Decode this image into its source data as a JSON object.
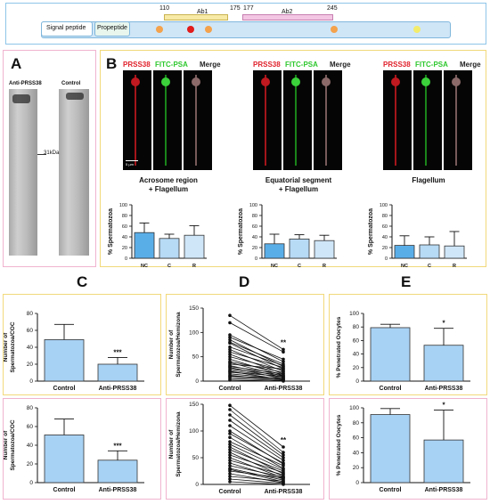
{
  "schematic": {
    "segments": [
      {
        "label": "Signal peptide"
      },
      {
        "label": "Propeptide"
      }
    ],
    "positions": {
      "p110": "110",
      "p175": "175",
      "p177": "177",
      "p245": "245"
    },
    "antibodies": {
      "ab1": "Ab1",
      "ab2": "Ab2"
    },
    "colors": {
      "track": "#cfe6f7",
      "ab1": "#f7e9a6",
      "ab2": "#f3c6e3",
      "orange": "#f4a24c",
      "red": "#e21b1b",
      "yellow": "#f2ec6b"
    }
  },
  "panel_letters": {
    "a": "A",
    "b": "B",
    "c": "C",
    "d": "D",
    "e": "E"
  },
  "western": {
    "lane1": "Anti-PRSS38",
    "lane2": "Control",
    "marker": "31kDa"
  },
  "micro_headers": {
    "red": "PRSS38",
    "green": "FITC-PSA",
    "merge": "Merge"
  },
  "scale_bar": "5 µm",
  "micro_groups": [
    {
      "caption_line1": "Acrosome region",
      "caption_line2": "+ Flagellum"
    },
    {
      "caption_line1": "Equatorial segment",
      "caption_line2": "+ Flagellum"
    },
    {
      "caption_line1": "Flagellum",
      "caption_line2": ""
    }
  ],
  "chart_data": [
    {
      "id": "b1",
      "type": "bar",
      "categories": [
        "NC",
        "C",
        "R"
      ],
      "values": [
        48,
        37,
        43
      ],
      "errors": [
        18,
        8,
        18
      ],
      "ylabel": "% Spermatozoa",
      "ylim": [
        0,
        100
      ],
      "yticks": [
        0,
        20,
        40,
        60,
        80,
        100
      ],
      "colors": [
        "#5aaee8",
        "#b7daf5",
        "#cfe6f8"
      ]
    },
    {
      "id": "b2",
      "type": "bar",
      "categories": [
        "NC",
        "C",
        "R"
      ],
      "values": [
        27,
        36,
        33
      ],
      "errors": [
        18,
        8,
        10
      ],
      "ylabel": "% Spermatozoa",
      "ylim": [
        0,
        100
      ],
      "yticks": [
        0,
        20,
        40,
        60,
        80,
        100
      ],
      "colors": [
        "#5aaee8",
        "#b7daf5",
        "#cfe6f8"
      ]
    },
    {
      "id": "b3",
      "type": "bar",
      "categories": [
        "NC",
        "C",
        "R"
      ],
      "values": [
        24,
        25,
        23
      ],
      "errors": [
        18,
        15,
        27
      ],
      "ylabel": "% Spermatozoa",
      "ylim": [
        0,
        100
      ],
      "yticks": [
        0,
        20,
        40,
        60,
        80,
        100
      ],
      "colors": [
        "#5aaee8",
        "#b7daf5",
        "#cfe6f8"
      ]
    },
    {
      "id": "c1",
      "type": "bar",
      "categories": [
        "Control",
        "Anti-PRSS38"
      ],
      "values": [
        49,
        20
      ],
      "errors": [
        18,
        8
      ],
      "ylabel": "Number of Spermatozoa/COC",
      "ylim": [
        0,
        80
      ],
      "yticks": [
        0,
        20,
        40,
        60,
        80
      ],
      "sig": "***",
      "colors": [
        "#a8d2f4",
        "#a8d2f4"
      ]
    },
    {
      "id": "c2",
      "type": "bar",
      "categories": [
        "Control",
        "Anti-PRSS38"
      ],
      "values": [
        51,
        24
      ],
      "errors": [
        17,
        10
      ],
      "ylabel": "Number of Spermatozoa/COC",
      "ylim": [
        0,
        80
      ],
      "yticks": [
        0,
        20,
        40,
        60,
        80
      ],
      "sig": "***",
      "colors": [
        "#a8d2f4",
        "#a8d2f4"
      ]
    },
    {
      "id": "d1",
      "type": "line",
      "categories": [
        "Control",
        "Anti-PRSS38"
      ],
      "ylabel": "Number of Spermatozoa/Hemizona",
      "ylim": [
        0,
        150
      ],
      "yticks": [
        0,
        50,
        100,
        150
      ],
      "sig": "**",
      "pairs": [
        [
          135,
          65
        ],
        [
          120,
          60
        ],
        [
          95,
          40
        ],
        [
          90,
          45
        ],
        [
          85,
          30
        ],
        [
          80,
          35
        ],
        [
          78,
          25
        ],
        [
          70,
          32
        ],
        [
          65,
          20
        ],
        [
          60,
          28
        ],
        [
          55,
          15
        ],
        [
          50,
          22
        ],
        [
          45,
          12
        ],
        [
          40,
          18
        ],
        [
          38,
          10
        ],
        [
          35,
          25
        ],
        [
          32,
          8
        ],
        [
          30,
          15
        ],
        [
          28,
          5
        ],
        [
          25,
          12
        ],
        [
          22,
          8
        ],
        [
          20,
          3
        ],
        [
          18,
          10
        ],
        [
          15,
          5
        ],
        [
          12,
          2
        ],
        [
          10,
          6
        ],
        [
          8,
          3
        ],
        [
          5,
          1
        ],
        [
          2,
          0
        ]
      ]
    },
    {
      "id": "d2",
      "type": "line",
      "categories": [
        "Control",
        "Anti-PRSS38"
      ],
      "ylabel": "Number of Spermatozoa/Hemizona",
      "ylim": [
        0,
        150
      ],
      "yticks": [
        0,
        50,
        100,
        150
      ],
      "sig": "**",
      "pairs": [
        [
          148,
          70
        ],
        [
          140,
          60
        ],
        [
          130,
          55
        ],
        [
          120,
          50
        ],
        [
          110,
          45
        ],
        [
          100,
          38
        ],
        [
          95,
          40
        ],
        [
          88,
          30
        ],
        [
          80,
          35
        ],
        [
          75,
          28
        ],
        [
          70,
          20
        ],
        [
          65,
          25
        ],
        [
          60,
          15
        ],
        [
          55,
          22
        ],
        [
          50,
          12
        ],
        [
          45,
          18
        ],
        [
          40,
          10
        ],
        [
          35,
          14
        ],
        [
          30,
          8
        ],
        [
          28,
          5
        ],
        [
          25,
          12
        ],
        [
          20,
          3
        ],
        [
          15,
          6
        ],
        [
          10,
          2
        ],
        [
          5,
          0
        ]
      ]
    },
    {
      "id": "e1",
      "type": "bar",
      "categories": [
        "Control",
        "Anti-PRSS38"
      ],
      "values": [
        79,
        53
      ],
      "errors": [
        5,
        25
      ],
      "ylabel": "% Penetrated Oocytes",
      "ylim": [
        0,
        100
      ],
      "yticks": [
        0,
        20,
        40,
        60,
        80,
        100
      ],
      "sig": "*",
      "colors": [
        "#a8d2f4",
        "#a8d2f4"
      ]
    },
    {
      "id": "e2",
      "type": "bar",
      "categories": [
        "Control",
        "Anti-PRSS38"
      ],
      "values": [
        91,
        57
      ],
      "errors": [
        8,
        40
      ],
      "ylabel": "% Penetrated Oocytes",
      "ylim": [
        0,
        100
      ],
      "yticks": [
        0,
        20,
        40,
        60,
        80,
        100
      ],
      "sig": "*",
      "colors": [
        "#a8d2f4",
        "#a8d2f4"
      ]
    }
  ]
}
